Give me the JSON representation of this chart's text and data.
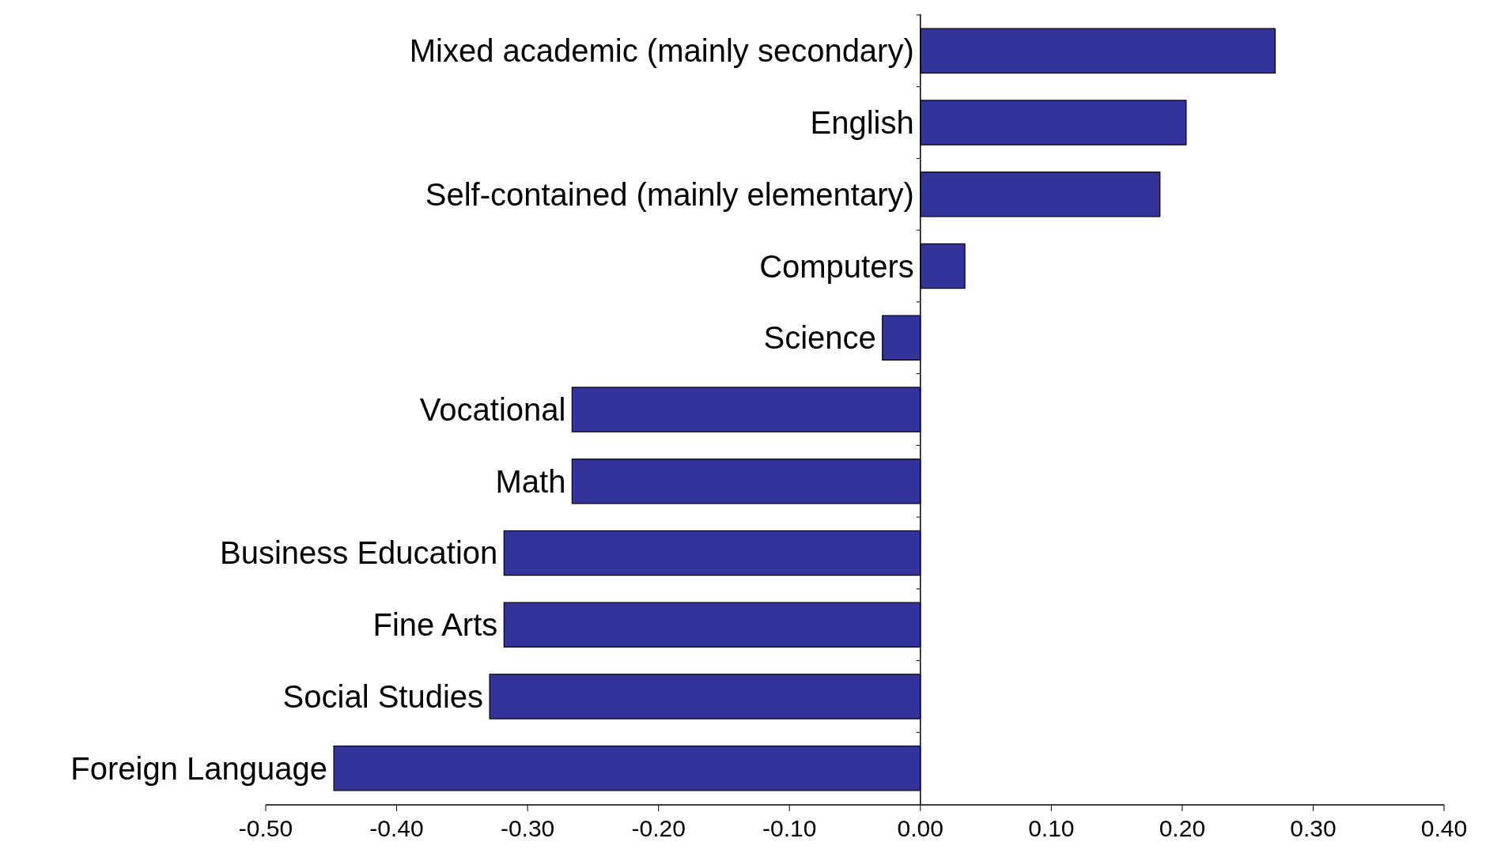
{
  "chart_data": {
    "type": "bar",
    "orientation": "horizontal",
    "categories": [
      "Mixed academic (mainly secondary)",
      "English",
      "Self-contained (mainly elementary)",
      "Computers",
      "Science",
      "Vocational",
      "Math",
      "Business Education",
      "Fine Arts",
      "Social Studies",
      "Foreign Language"
    ],
    "values": [
      0.271,
      0.203,
      0.183,
      0.034,
      -0.029,
      -0.266,
      -0.266,
      -0.318,
      -0.318,
      -0.329,
      -0.448
    ],
    "color": "#333399",
    "xlim": [
      -0.5,
      0.4
    ],
    "xticks": [
      {
        "value": -0.5,
        "label": "-0.50"
      },
      {
        "value": -0.4,
        "label": "-0.40"
      },
      {
        "value": -0.3,
        "label": "-0.30"
      },
      {
        "value": -0.2,
        "label": "-0.20"
      },
      {
        "value": -0.1,
        "label": "-0.10"
      },
      {
        "value": 0,
        "label": "0.00"
      },
      {
        "value": 0.1,
        "label": "0.10"
      },
      {
        "value": 0.2,
        "label": "0.20"
      },
      {
        "value": 0.3,
        "label": "0.30"
      },
      {
        "value": 0.4,
        "label": "0.40"
      }
    ],
    "grid": false
  }
}
